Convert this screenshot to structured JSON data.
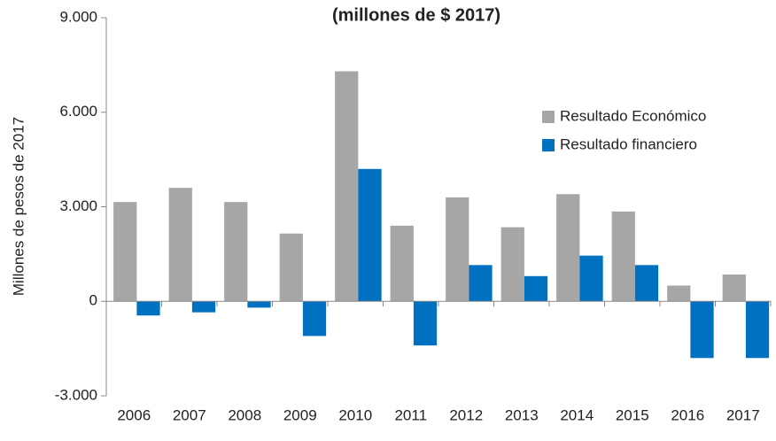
{
  "chart_data": {
    "type": "bar",
    "title": "(millones de $ 2017)",
    "y_label": "Millones de pesos de 2017",
    "categories": [
      "2006",
      "2007",
      "2008",
      "2009",
      "2010",
      "2011",
      "2012",
      "2013",
      "2014",
      "2015",
      "2016",
      "2017"
    ],
    "series": [
      {
        "name": "Resultado Económico",
        "color": "#a6a6a6",
        "values": [
          3150,
          3600,
          3150,
          2150,
          7300,
          2400,
          3300,
          2350,
          3400,
          2850,
          500,
          850
        ]
      },
      {
        "name": "Resultado financiero",
        "color": "#0070c0",
        "values": [
          -450,
          -350,
          -200,
          -1100,
          4200,
          -1400,
          1150,
          800,
          1450,
          1150,
          -1800,
          -1800
        ]
      }
    ],
    "ylim": [
      -3000,
      9000
    ],
    "yticks": [
      {
        "value": -3000,
        "label": "-3.000"
      },
      0,
      {
        "value": 3000,
        "label": "3.000"
      },
      {
        "value": 6000,
        "label": "6.000"
      },
      {
        "value": 9000,
        "label": "9.000"
      }
    ],
    "legend": "upper right"
  }
}
